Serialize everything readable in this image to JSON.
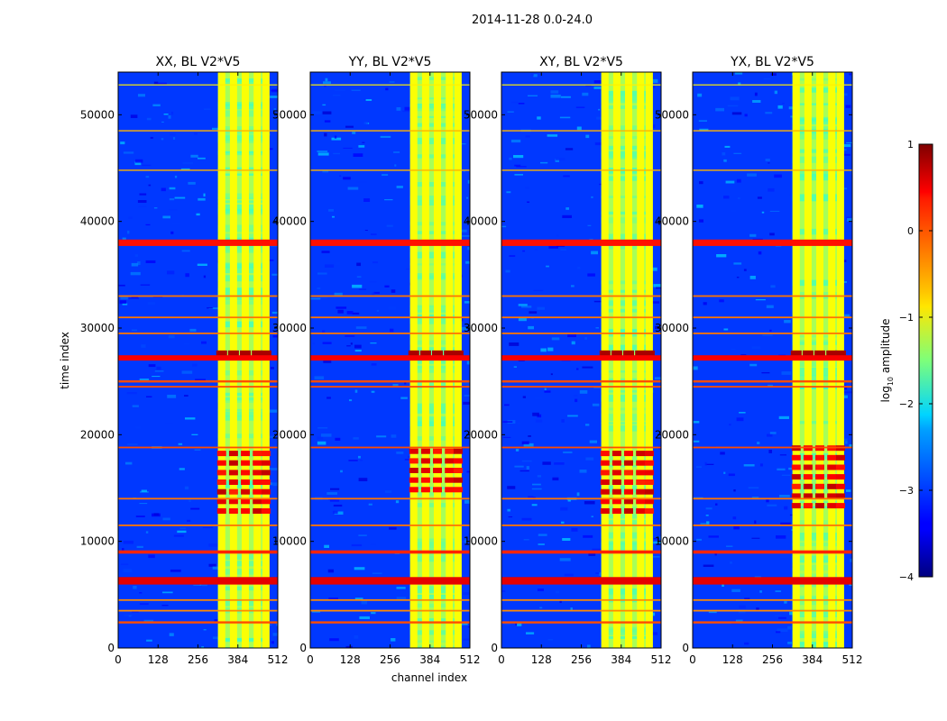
{
  "figure": {
    "suptitle": "2014-11-28 0.0-24.0",
    "colormap": "jet"
  },
  "chart_data": {
    "type": "heatmap",
    "title": "2014-11-28 0.0-24.0",
    "xlabel": "channel index",
    "ylabel": "time index",
    "xlim": [
      0,
      512
    ],
    "ylim": [
      0,
      54000
    ],
    "xticks": [
      0,
      128,
      256,
      384,
      512
    ],
    "yticks": [
      0,
      10000,
      20000,
      30000,
      40000,
      50000
    ],
    "colorbar": {
      "label": "log10 amplitude",
      "label_main": "log",
      "label_sub": "10",
      "label_rest": " amplitude",
      "range": [
        -4,
        1
      ],
      "ticks": [
        1,
        0,
        -1,
        -2,
        -3,
        -4
      ]
    },
    "panels": [
      {
        "title": "XX, BL V2*V5",
        "hot_block": [
          18500,
          12500
        ]
      },
      {
        "title": "YY, BL V2*V5",
        "hot_block": [
          18500,
          14500
        ]
      },
      {
        "title": "XY, BL V2*V5",
        "hot_block": [
          18500,
          12500
        ]
      },
      {
        "title": "YX, BL V2*V5",
        "hot_block": [
          18500,
          13000
        ]
      }
    ],
    "signal_band_channels": [
      320,
      480
    ],
    "signal_columns_channels": [
      332,
      370,
      408,
      446,
      474
    ],
    "rfi_rows": [
      {
        "t": 38000,
        "v": 0.3,
        "thick": 600
      },
      {
        "t": 27200,
        "v": 0.4,
        "thick": 500
      },
      {
        "t": 6300,
        "v": 0.5,
        "thick": 700
      },
      {
        "t": 9000,
        "v": 0.2,
        "thick": 300
      },
      {
        "t": 2400,
        "v": 0.0,
        "thick": 200
      },
      {
        "t": 25000,
        "v": 0.0,
        "thick": 200
      },
      {
        "t": 24500,
        "v": 0.0,
        "thick": 150
      },
      {
        "t": 18800,
        "v": 0.0,
        "thick": 150
      },
      {
        "t": 31000,
        "v": -0.2,
        "thick": 150
      },
      {
        "t": 33000,
        "v": -0.2,
        "thick": 150
      },
      {
        "t": 29500,
        "v": -0.2,
        "thick": 150
      },
      {
        "t": 14000,
        "v": -0.2,
        "thick": 150
      },
      {
        "t": 11500,
        "v": -0.2,
        "thick": 150
      },
      {
        "t": 4500,
        "v": -0.3,
        "thick": 150
      },
      {
        "t": 3500,
        "v": -0.3,
        "thick": 150
      },
      {
        "t": 48500,
        "v": -0.5,
        "thick": 120
      },
      {
        "t": 44800,
        "v": -0.5,
        "thick": 120
      },
      {
        "t": 52800,
        "v": -0.8,
        "thick": 100
      }
    ]
  }
}
